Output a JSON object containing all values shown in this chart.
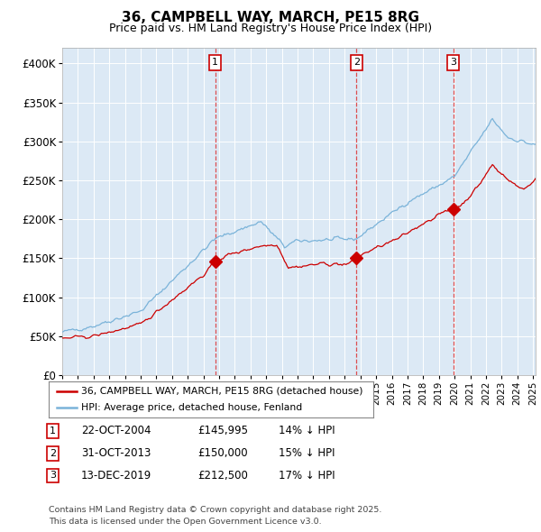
{
  "title": "36, CAMPBELL WAY, MARCH, PE15 8RG",
  "subtitle": "Price paid vs. HM Land Registry's House Price Index (HPI)",
  "bg_color": "#dce9f5",
  "plot_bg_color": "#dce9f5",
  "grid_color": "#ccddee",
  "hpi_color": "#7ab3d9",
  "price_color": "#cc0000",
  "ylim": [
    0,
    420000
  ],
  "yticks": [
    0,
    50000,
    100000,
    150000,
    200000,
    250000,
    300000,
    350000,
    400000
  ],
  "ytick_labels": [
    "£0",
    "£50K",
    "£100K",
    "£150K",
    "£200K",
    "£250K",
    "£300K",
    "£350K",
    "£400K"
  ],
  "legend_label_price": "36, CAMPBELL WAY, MARCH, PE15 8RG (detached house)",
  "legend_label_hpi": "HPI: Average price, detached house, Fenland",
  "sale1_date": "22-OCT-2004",
  "sale1_price": 145995,
  "sale1_hpi_diff": "14% ↓ HPI",
  "sale2_date": "31-OCT-2013",
  "sale2_price": 150000,
  "sale2_hpi_diff": "15% ↓ HPI",
  "sale3_date": "13-DEC-2019",
  "sale3_price": 212500,
  "sale3_hpi_diff": "17% ↓ HPI",
  "footer": "Contains HM Land Registry data © Crown copyright and database right 2025.\nThis data is licensed under the Open Government Licence v3.0."
}
